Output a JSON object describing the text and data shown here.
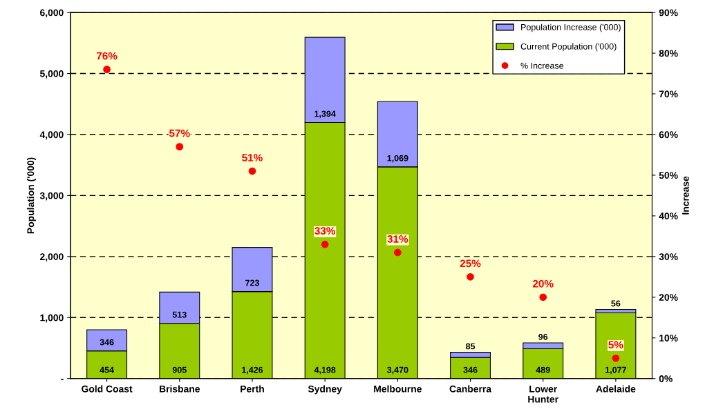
{
  "chart_data": {
    "type": "bar",
    "stacked": true,
    "ylabel": "Population ('000)",
    "y2label": "Increase",
    "categories": [
      "Gold Coast",
      "Brisbane",
      "Perth",
      "Sydney",
      "Melbourne",
      "Canberra",
      "Lower\nHunter",
      "Adelaide"
    ],
    "series": [
      {
        "name": "Current Population ('000)",
        "color": "#99cc00",
        "values": [
          454,
          905,
          1426,
          4198,
          3470,
          346,
          489,
          1077
        ],
        "value_labels": [
          "454",
          "905",
          "1,426",
          "4,198",
          "3,470",
          "346",
          "489",
          "1,077"
        ]
      },
      {
        "name": "Population Increase ('000)",
        "color": "#9999ff",
        "values": [
          346,
          513,
          723,
          1394,
          1069,
          85,
          96,
          56
        ],
        "value_labels": [
          "346",
          "513",
          "723",
          "1,394",
          "1,069",
          "85",
          "96",
          "56"
        ]
      },
      {
        "name": "% Increase",
        "type": "scatter",
        "axis": "y2",
        "color": "#ff0000",
        "marker": "circle",
        "values": [
          76,
          57,
          51,
          33,
          31,
          25,
          20,
          5
        ],
        "value_labels": [
          "76%",
          "57%",
          "51%",
          "33%",
          "31%",
          "25%",
          "20%",
          "5%"
        ]
      }
    ],
    "ylim": [
      0,
      6000
    ],
    "yticks": [
      {
        "value": 0,
        "label": "-"
      },
      {
        "value": 1000,
        "label": "1,000"
      },
      {
        "value": 2000,
        "label": "2,000"
      },
      {
        "value": 3000,
        "label": "3,000"
      },
      {
        "value": 4000,
        "label": "4,000"
      },
      {
        "value": 5000,
        "label": "5,000"
      },
      {
        "value": 6000,
        "label": "6,000"
      }
    ],
    "y2lim": [
      0,
      90
    ],
    "y2ticks": [
      {
        "value": 0,
        "label": "0%"
      },
      {
        "value": 10,
        "label": "10%"
      },
      {
        "value": 20,
        "label": "20%"
      },
      {
        "value": 30,
        "label": "30%"
      },
      {
        "value": 40,
        "label": "40%"
      },
      {
        "value": 50,
        "label": "50%"
      },
      {
        "value": 60,
        "label": "60%"
      },
      {
        "value": 70,
        "label": "70%"
      },
      {
        "value": 80,
        "label": "80%"
      },
      {
        "value": 90,
        "label": "90%"
      }
    ],
    "grid": "y",
    "legend": "top right"
  }
}
